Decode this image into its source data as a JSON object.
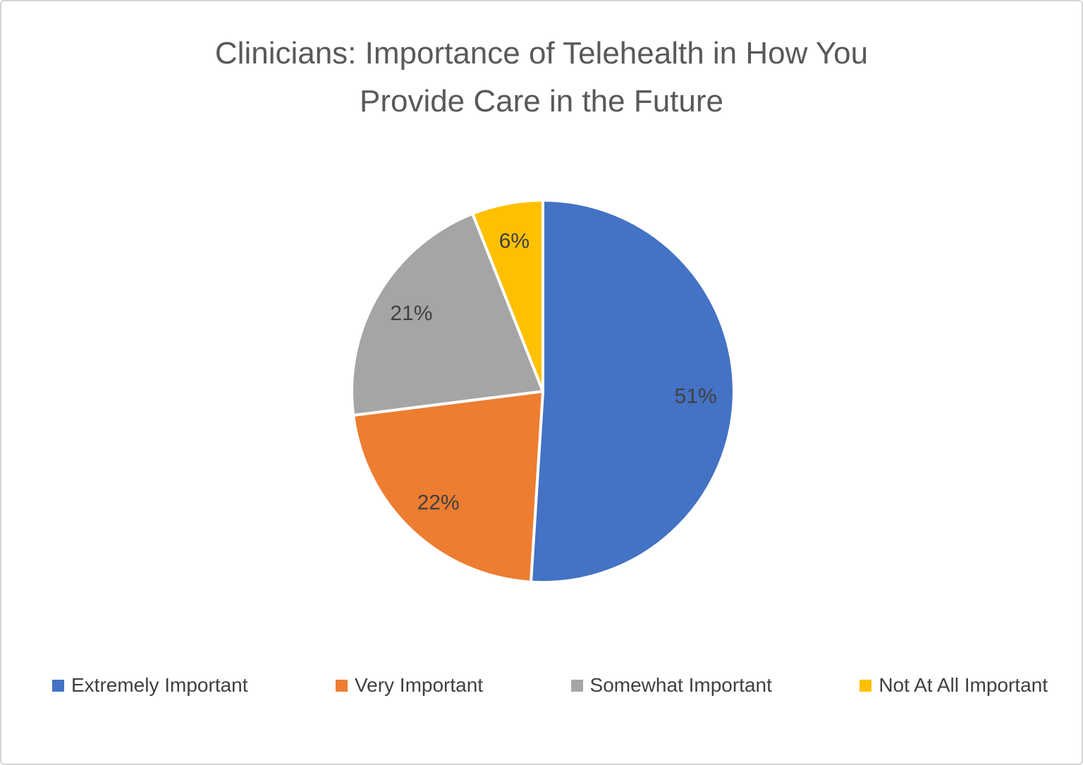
{
  "title": {
    "line1": "Clinicians: Importance of Telehealth in How You",
    "line2": "Provide Care in the Future"
  },
  "chart_data": {
    "type": "pie",
    "title": "Clinicians: Importance of Telehealth in How You Provide Care in the Future",
    "categories": [
      "Extremely Important",
      "Very Important",
      "Somewhat Important",
      "Not At All Important"
    ],
    "values": [
      51,
      22,
      21,
      6
    ],
    "data_labels": [
      "51%",
      "22%",
      "21%",
      "6%"
    ],
    "unit": "percent",
    "colors": [
      "#4472C4",
      "#ED7D31",
      "#A5A5A5",
      "#FFC000"
    ],
    "start_angle_deg": 0,
    "direction": "clockwise",
    "slice_border_color": "#FFFFFF",
    "legend_position": "bottom"
  },
  "style": {
    "title_color": "#595959",
    "data_label_color": "#404040",
    "legend_text_color": "#404040",
    "background_color": "#FFFFFF",
    "border_color": "#D6D6D6"
  }
}
